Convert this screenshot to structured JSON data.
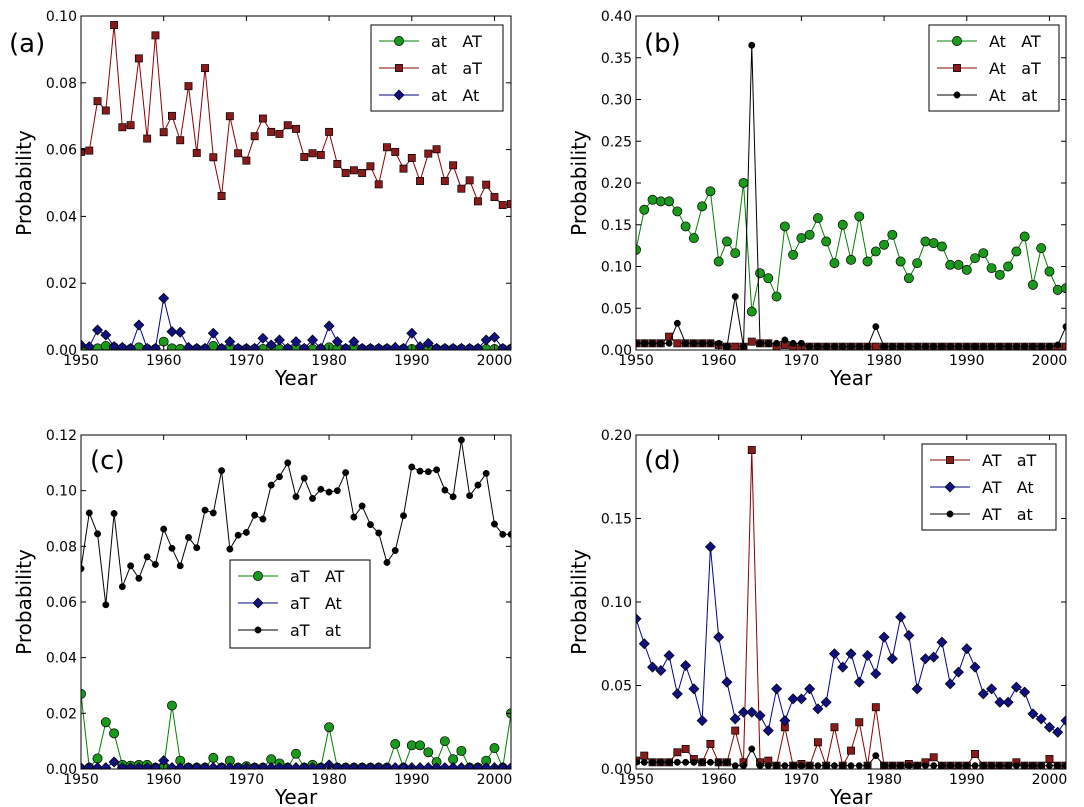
{
  "chart_data": [
    {
      "type": "line",
      "panel_label": "(a)",
      "xlabel": "Year",
      "ylabel": "Probability",
      "xlim": [
        1950,
        2002
      ],
      "ylim": [
        0,
        0.1
      ],
      "xticks": [
        1950,
        1960,
        1970,
        1980,
        1990,
        2000
      ],
      "yticks": [
        0,
        0.02,
        0.04,
        0.06,
        0.08,
        0.1
      ],
      "ytick_labels": [
        "0.00",
        "0.02",
        "0.04",
        "0.06",
        "0.08",
        "0.10"
      ],
      "legend_position": "top-right",
      "x": [
        1950,
        1951,
        1952,
        1953,
        1954,
        1955,
        1956,
        1957,
        1958,
        1959,
        1960,
        1961,
        1962,
        1963,
        1964,
        1965,
        1966,
        1967,
        1968,
        1969,
        1970,
        1971,
        1972,
        1973,
        1974,
        1975,
        1976,
        1977,
        1978,
        1979,
        1980,
        1981,
        1982,
        1983,
        1984,
        1985,
        1986,
        1987,
        1988,
        1989,
        1990,
        1991,
        1992,
        1993,
        1994,
        1995,
        1996,
        1997,
        1998,
        1999,
        2000,
        2001,
        2002
      ],
      "series": [
        {
          "name": "at   AT",
          "color": "#008000",
          "marker": "circle",
          "values": [
            0.0005,
            0.0003,
            0.0005,
            0.0012,
            0.0008,
            0.0005,
            0.0003,
            0.0008,
            0.0003,
            0.0003,
            0.0025,
            0.0005,
            0.0003,
            0.0003,
            0.0003,
            0.0003,
            0.0012,
            0.0003,
            0.0003,
            0.0003,
            0.0003,
            0.0003,
            0.0003,
            0.0003,
            0.0003,
            0.0003,
            0.0003,
            0.0003,
            0.0003,
            0.0003,
            0.0008,
            0.0003,
            0.0003,
            0.0003,
            0.0003,
            0.0003,
            0.0003,
            0.0003,
            0.0003,
            0.0003,
            0.0003,
            0.0003,
            0.0008,
            0.0003,
            0.0003,
            0.0003,
            0.0003,
            0.0003,
            0.0003,
            0.0003,
            0.0003,
            0.0003,
            0.0003
          ]
        },
        {
          "name": "at   aT",
          "color": "#8b0000",
          "marker": "square",
          "values": [
            0.0593,
            0.0597,
            0.0745,
            0.0717,
            0.0973,
            0.0667,
            0.0673,
            0.0873,
            0.0633,
            0.0942,
            0.0652,
            0.0701,
            0.0628,
            0.079,
            0.059,
            0.0844,
            0.0577,
            0.0461,
            0.07,
            0.0589,
            0.0567,
            0.064,
            0.0693,
            0.0653,
            0.0647,
            0.0673,
            0.0662,
            0.0578,
            0.0589,
            0.0584,
            0.0653,
            0.0557,
            0.053,
            0.0538,
            0.053,
            0.055,
            0.0496,
            0.0607,
            0.0593,
            0.0543,
            0.0575,
            0.0506,
            0.0588,
            0.0601,
            0.0506,
            0.0553,
            0.0483,
            0.0508,
            0.0445,
            0.0495,
            0.0458,
            0.0434,
            0.0437
          ]
        },
        {
          "name": "at   At",
          "color": "#00008b",
          "marker": "diamond",
          "values": [
            0.0015,
            0.001,
            0.006,
            0.0045,
            0.001,
            0.0008,
            0.0005,
            0.0075,
            0.0005,
            0.0005,
            0.0155,
            0.0055,
            0.0053,
            0.0008,
            0.0005,
            0.0005,
            0.005,
            0.0005,
            0.0025,
            0.0005,
            0.0005,
            0.0005,
            0.0035,
            0.0015,
            0.003,
            0.0005,
            0.0025,
            0.0005,
            0.003,
            0.0005,
            0.0072,
            0.0025,
            0.0005,
            0.0025,
            0.0005,
            0.0005,
            0.0005,
            0.0005,
            0.0008,
            0.0005,
            0.005,
            0.001,
            0.002,
            0.0005,
            0.0005,
            0.0005,
            0.0005,
            0.0005,
            0.0005,
            0.003,
            0.0038,
            0.0005,
            0.0005
          ]
        }
      ]
    },
    {
      "type": "line",
      "panel_label": "(b)",
      "xlabel": "Year",
      "ylabel": "Probability",
      "xlim": [
        1950,
        2002
      ],
      "ylim": [
        0,
        0.4
      ],
      "xticks": [
        1950,
        1960,
        1970,
        1980,
        1990,
        2000
      ],
      "yticks": [
        0,
        0.05,
        0.1,
        0.15,
        0.2,
        0.25,
        0.3,
        0.35,
        0.4
      ],
      "ytick_labels": [
        "0.00",
        "0.05",
        "0.10",
        "0.15",
        "0.20",
        "0.25",
        "0.30",
        "0.35",
        "0.40"
      ],
      "legend_position": "top-right",
      "x": [
        1950,
        1951,
        1952,
        1953,
        1954,
        1955,
        1956,
        1957,
        1958,
        1959,
        1960,
        1961,
        1962,
        1963,
        1964,
        1965,
        1966,
        1967,
        1968,
        1969,
        1970,
        1971,
        1972,
        1973,
        1974,
        1975,
        1976,
        1977,
        1978,
        1979,
        1980,
        1981,
        1982,
        1983,
        1984,
        1985,
        1986,
        1987,
        1988,
        1989,
        1990,
        1991,
        1992,
        1993,
        1994,
        1995,
        1996,
        1997,
        1998,
        1999,
        2000,
        2001,
        2002
      ],
      "series": [
        {
          "name": "At   AT",
          "color": "#008000",
          "marker": "circle",
          "values": [
            0.12,
            0.168,
            0.18,
            0.178,
            0.178,
            0.166,
            0.148,
            0.134,
            0.172,
            0.19,
            0.106,
            0.13,
            0.116,
            0.2,
            0.046,
            0.092,
            0.086,
            0.064,
            0.148,
            0.114,
            0.134,
            0.138,
            0.158,
            0.13,
            0.104,
            0.15,
            0.108,
            0.16,
            0.106,
            0.118,
            0.126,
            0.138,
            0.106,
            0.086,
            0.104,
            0.13,
            0.128,
            0.124,
            0.102,
            0.102,
            0.096,
            0.11,
            0.116,
            0.098,
            0.09,
            0.1,
            0.118,
            0.136,
            0.078,
            0.122,
            0.094,
            0.072,
            0.074
          ]
        },
        {
          "name": "At   aT",
          "color": "#8b0000",
          "marker": "square",
          "values": [
            0.008,
            0.008,
            0.008,
            0.008,
            0.016,
            0.008,
            0.008,
            0.008,
            0.008,
            0.008,
            0.006,
            0.004,
            0.004,
            0.004,
            0.01,
            0.008,
            0.008,
            0.004,
            0.006,
            0.004,
            0.004,
            0.004,
            0.004,
            0.004,
            0.004,
            0.004,
            0.004,
            0.004,
            0.004,
            0.004,
            0.004,
            0.004,
            0.004,
            0.004,
            0.004,
            0.004,
            0.004,
            0.004,
            0.004,
            0.004,
            0.004,
            0.004,
            0.004,
            0.004,
            0.004,
            0.004,
            0.004,
            0.004,
            0.004,
            0.004,
            0.004,
            0.004,
            0.004
          ]
        },
        {
          "name": "At   at",
          "color": "#000000",
          "marker": "dot",
          "values": [
            0.008,
            0.008,
            0.008,
            0.008,
            0.008,
            0.032,
            0.008,
            0.008,
            0.008,
            0.008,
            0.008,
            0.004,
            0.064,
            0.004,
            0.365,
            0.008,
            0.008,
            0.008,
            0.012,
            0.008,
            0.008,
            0.004,
            0.004,
            0.004,
            0.004,
            0.004,
            0.004,
            0.004,
            0.004,
            0.028,
            0.004,
            0.004,
            0.004,
            0.004,
            0.004,
            0.004,
            0.004,
            0.004,
            0.004,
            0.004,
            0.004,
            0.004,
            0.004,
            0.004,
            0.004,
            0.004,
            0.004,
            0.004,
            0.004,
            0.004,
            0.004,
            0.006,
            0.028
          ]
        }
      ]
    },
    {
      "type": "line",
      "panel_label": "(c)",
      "xlabel": "Year",
      "ylabel": "Probability",
      "xlim": [
        1950,
        2002
      ],
      "ylim": [
        0,
        0.12
      ],
      "xticks": [
        1950,
        1960,
        1970,
        1980,
        1990,
        2000
      ],
      "yticks": [
        0,
        0.02,
        0.04,
        0.06,
        0.08,
        0.1,
        0.12
      ],
      "ytick_labels": [
        "0.00",
        "0.02",
        "0.04",
        "0.06",
        "0.08",
        "0.10",
        "0.12"
      ],
      "legend_position": "center",
      "x": [
        1950,
        1951,
        1952,
        1953,
        1954,
        1955,
        1956,
        1957,
        1958,
        1959,
        1960,
        1961,
        1962,
        1963,
        1964,
        1965,
        1966,
        1967,
        1968,
        1969,
        1970,
        1971,
        1972,
        1973,
        1974,
        1975,
        1976,
        1977,
        1978,
        1979,
        1980,
        1981,
        1982,
        1983,
        1984,
        1985,
        1986,
        1987,
        1988,
        1989,
        1990,
        1991,
        1992,
        1993,
        1994,
        1995,
        1996,
        1997,
        1998,
        1999,
        2000,
        2001,
        2002
      ],
      "series": [
        {
          "name": "aT   AT",
          "color": "#008000",
          "marker": "circle",
          "values": [
            0.027,
            0.0005,
            0.0038,
            0.0168,
            0.0128,
            0.0015,
            0.0012,
            0.0015,
            0.0015,
            0.0005,
            0.0005,
            0.0228,
            0.003,
            0.0005,
            0.0005,
            0.0005,
            0.004,
            0.0005,
            0.003,
            0.0005,
            0.001,
            0.0005,
            0.0005,
            0.0035,
            0.002,
            0.0005,
            0.0055,
            0.0005,
            0.0015,
            0.0005,
            0.015,
            0.0005,
            0.0005,
            0.0005,
            0.0005,
            0.0005,
            0.0005,
            0.0005,
            0.009,
            0.0005,
            0.0085,
            0.0085,
            0.006,
            0.0025,
            0.01,
            0.0035,
            0.0065,
            0.0005,
            0.0005,
            0.003,
            0.0075,
            0.0005,
            0.02
          ]
        },
        {
          "name": "aT   At",
          "color": "#00008b",
          "marker": "diamond",
          "values": [
            0.0005,
            0.0005,
            0.0005,
            0.0005,
            0.0025,
            0.0005,
            0.0005,
            0.0005,
            0.0005,
            0.0005,
            0.003,
            0.0005,
            0.0005,
            0.0005,
            0.0005,
            0.0005,
            0.0005,
            0.0005,
            0.0005,
            0.0005,
            0.0005,
            0.0005,
            0.0005,
            0.0005,
            0.0005,
            0.0005,
            0.0005,
            0.0005,
            0.0005,
            0.0005,
            0.0015,
            0.0005,
            0.0005,
            0.0005,
            0.0005,
            0.0005,
            0.0005,
            0.0005,
            0.0005,
            0.0005,
            0.0005,
            0.0005,
            0.0005,
            0.0005,
            0.0005,
            0.0005,
            0.0005,
            0.0005,
            0.0005,
            0.0005,
            0.0005,
            0.0005,
            0.0005
          ]
        },
        {
          "name": "aT   at",
          "color": "#000000",
          "marker": "dot",
          "values": [
            0.072,
            0.092,
            0.0845,
            0.059,
            0.0918,
            0.0655,
            0.073,
            0.0685,
            0.0762,
            0.0735,
            0.0862,
            0.0793,
            0.073,
            0.0832,
            0.0795,
            0.093,
            0.092,
            0.1072,
            0.079,
            0.084,
            0.085,
            0.0912,
            0.0898,
            0.102,
            0.105,
            0.11,
            0.0978,
            0.1045,
            0.0972,
            0.1005,
            0.0995,
            0.1,
            0.1065,
            0.0905,
            0.0945,
            0.0878,
            0.0848,
            0.0742,
            0.0785,
            0.091,
            0.1085,
            0.107,
            0.1068,
            0.1075,
            0.1002,
            0.0978,
            0.1182,
            0.0982,
            0.102,
            0.1062,
            0.088,
            0.0843,
            0.0843
          ]
        }
      ]
    },
    {
      "type": "line",
      "panel_label": "(d)",
      "xlabel": "Year",
      "ylabel": "Probability",
      "xlim": [
        1950,
        2002
      ],
      "ylim": [
        0,
        0.2
      ],
      "xticks": [
        1950,
        1960,
        1970,
        1980,
        1990,
        2000
      ],
      "yticks": [
        0,
        0.05,
        0.1,
        0.15,
        0.2
      ],
      "ytick_labels": [
        "0.00",
        "0.05",
        "0.10",
        "0.15",
        "0.20"
      ],
      "legend_position": "top-right",
      "x": [
        1950,
        1951,
        1952,
        1953,
        1954,
        1955,
        1956,
        1957,
        1958,
        1959,
        1960,
        1961,
        1962,
        1963,
        1964,
        1965,
        1966,
        1967,
        1968,
        1969,
        1970,
        1971,
        1972,
        1973,
        1974,
        1975,
        1976,
        1977,
        1978,
        1979,
        1980,
        1981,
        1982,
        1983,
        1984,
        1985,
        1986,
        1987,
        1988,
        1989,
        1990,
        1991,
        1992,
        1993,
        1994,
        1995,
        1996,
        1997,
        1998,
        1999,
        2000,
        2001,
        2002
      ],
      "series": [
        {
          "name": "AT   aT",
          "color": "#8b0000",
          "marker": "square",
          "values": [
            0.005,
            0.008,
            0.004,
            0.004,
            0.004,
            0.01,
            0.012,
            0.006,
            0.004,
            0.015,
            0.004,
            0.004,
            0.023,
            0.004,
            0.191,
            0.004,
            0.005,
            0.002,
            0.025,
            0.002,
            0.003,
            0.002,
            0.016,
            0.002,
            0.025,
            0.002,
            0.011,
            0.028,
            0.002,
            0.037,
            0.002,
            0.002,
            0.002,
            0.003,
            0.002,
            0.004,
            0.007,
            0.002,
            0.002,
            0.002,
            0.002,
            0.009,
            0.002,
            0.002,
            0.002,
            0.002,
            0.004,
            0.002,
            0.002,
            0.002,
            0.006,
            0.002,
            0.002
          ]
        },
        {
          "name": "AT   At",
          "color": "#00008b",
          "marker": "diamond",
          "values": [
            0.09,
            0.075,
            0.061,
            0.059,
            0.068,
            0.045,
            0.062,
            0.048,
            0.029,
            0.133,
            0.079,
            0.052,
            0.03,
            0.034,
            0.034,
            0.032,
            0.023,
            0.048,
            0.029,
            0.042,
            0.042,
            0.048,
            0.036,
            0.04,
            0.069,
            0.061,
            0.069,
            0.052,
            0.068,
            0.057,
            0.079,
            0.066,
            0.091,
            0.08,
            0.048,
            0.066,
            0.067,
            0.076,
            0.051,
            0.058,
            0.072,
            0.061,
            0.045,
            0.048,
            0.04,
            0.04,
            0.049,
            0.046,
            0.033,
            0.03,
            0.025,
            0.022,
            0.029
          ]
        },
        {
          "name": "AT   at",
          "color": "#000000",
          "marker": "dot",
          "values": [
            0.004,
            0.004,
            0.004,
            0.004,
            0.004,
            0.004,
            0.004,
            0.004,
            0.004,
            0.004,
            0.004,
            0.004,
            0.002,
            0.002,
            0.012,
            0.002,
            0.002,
            0.002,
            0.002,
            0.002,
            0.002,
            0.002,
            0.002,
            0.002,
            0.002,
            0.002,
            0.002,
            0.002,
            0.002,
            0.008,
            0.002,
            0.002,
            0.002,
            0.002,
            0.002,
            0.002,
            0.002,
            0.002,
            0.002,
            0.002,
            0.002,
            0.002,
            0.002,
            0.002,
            0.002,
            0.002,
            0.002,
            0.002,
            0.002,
            0.002,
            0.002,
            0.002,
            0.002
          ]
        }
      ]
    }
  ]
}
